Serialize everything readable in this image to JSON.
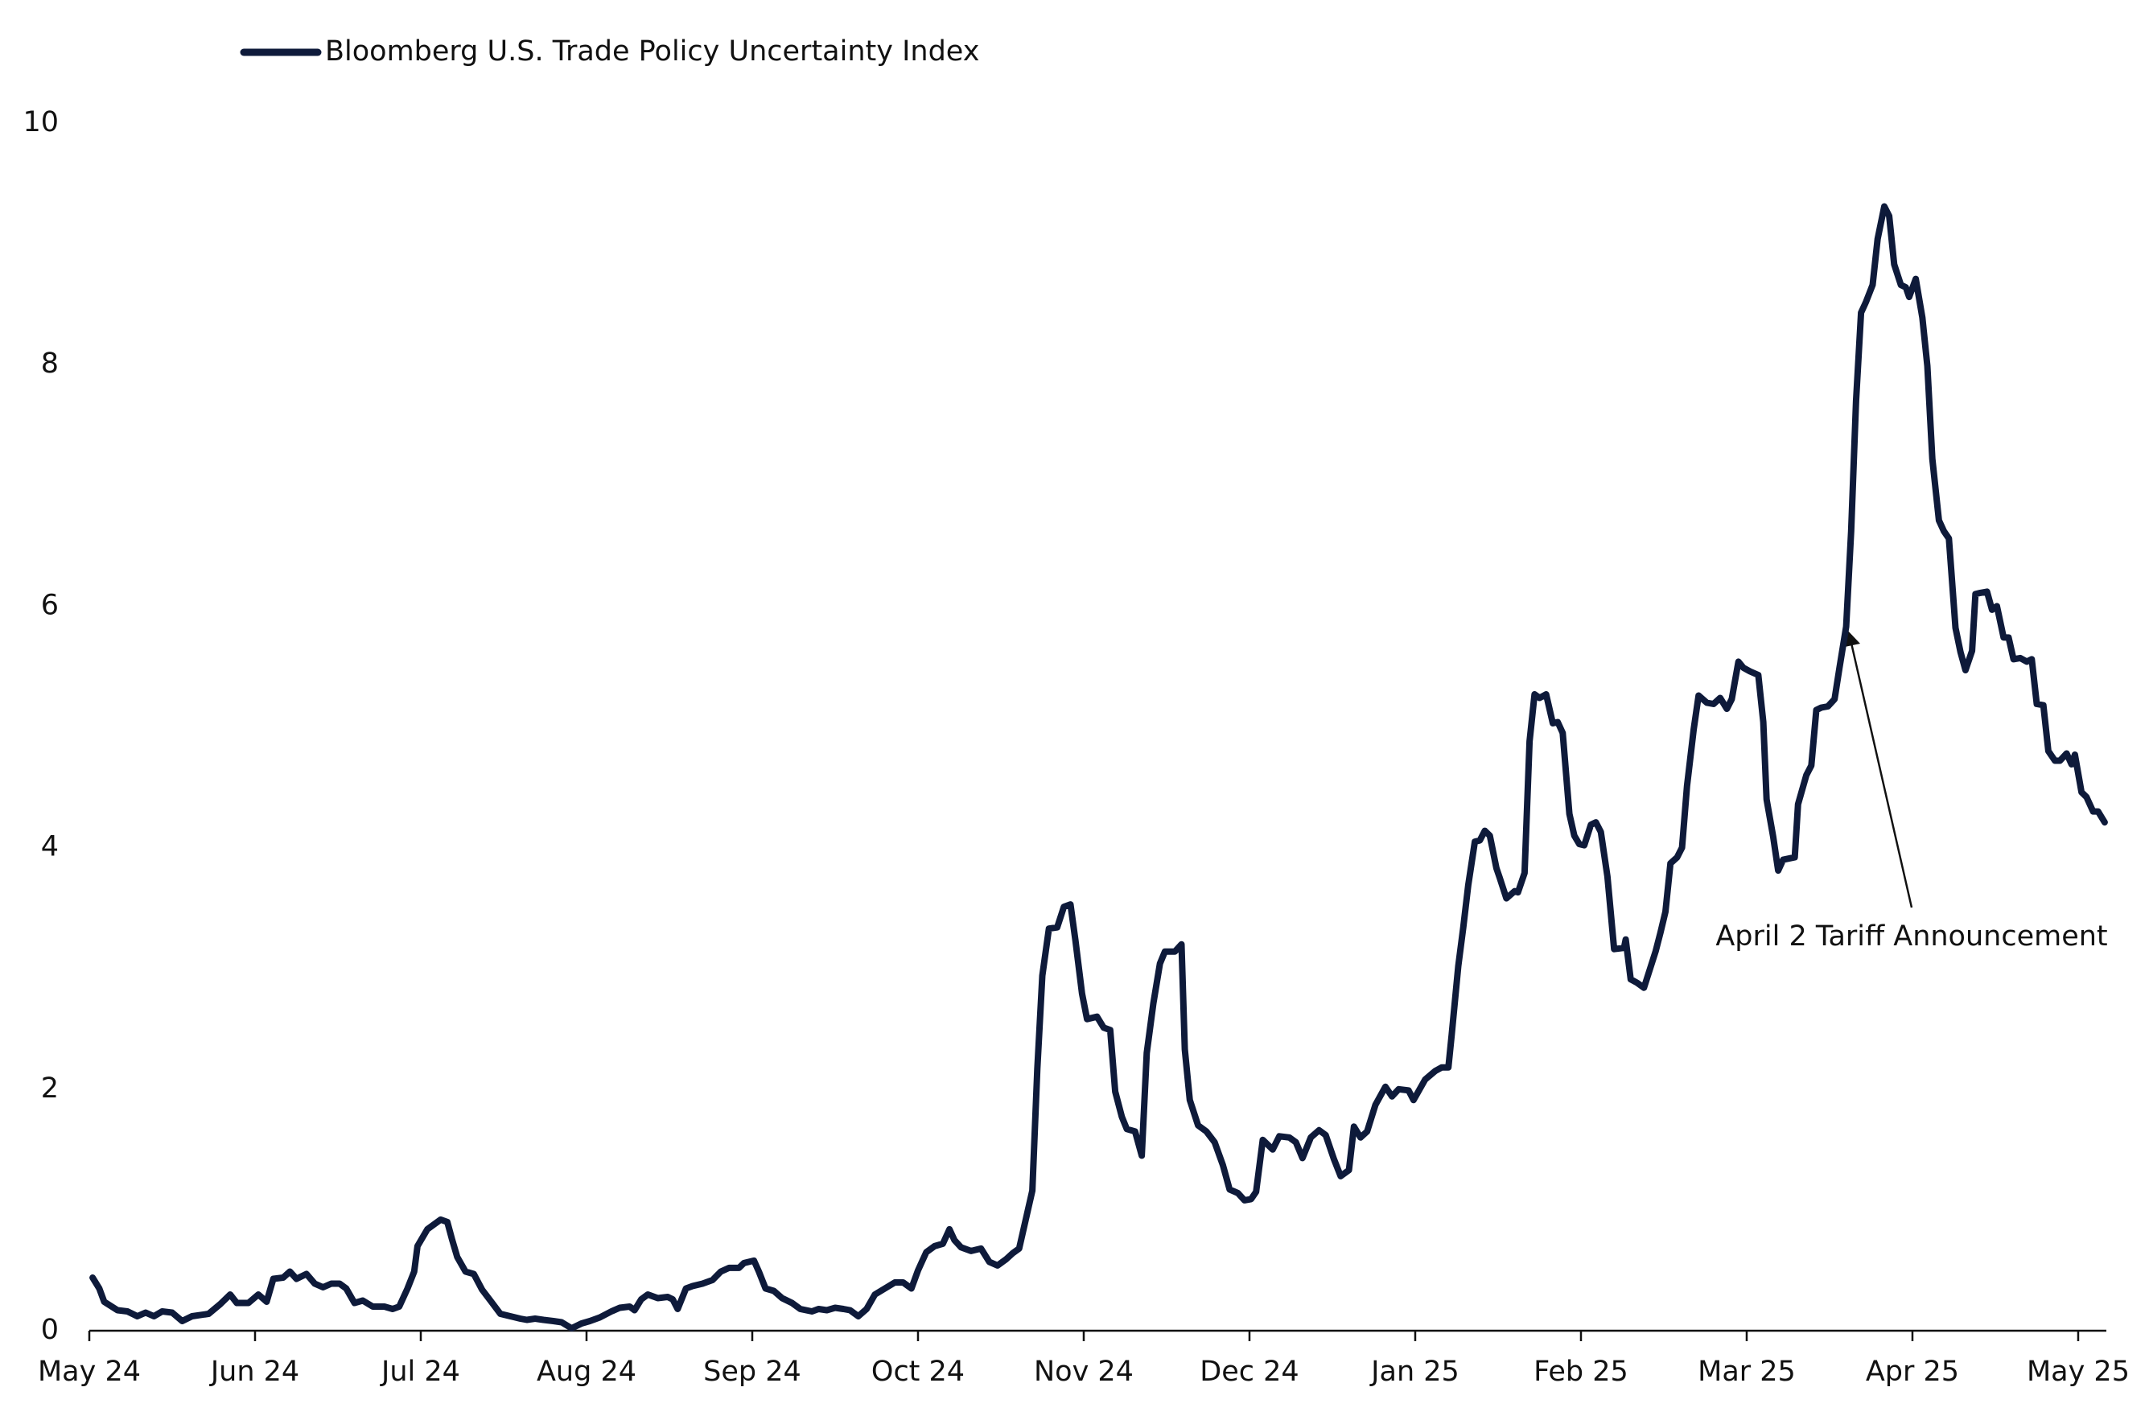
{
  "chart_data": {
    "type": "line",
    "legend": "top-left",
    "series": [
      {
        "name": "Bloomberg U.S. Trade Policy Uncertainty Index",
        "color": "#0e1a3a",
        "x": [
          0.02,
          0.06,
          0.09,
          0.17,
          0.23,
          0.29,
          0.34,
          0.39,
          0.44,
          0.5,
          0.56,
          0.62,
          0.72,
          0.79,
          0.85,
          0.89,
          0.96,
          1.02,
          1.07,
          1.11,
          1.17,
          1.21,
          1.25,
          1.31,
          1.36,
          1.41,
          1.46,
          1.51,
          1.55,
          1.6,
          1.65,
          1.71,
          1.78,
          1.83,
          1.87,
          1.92,
          1.96,
          1.98,
          2.04,
          2.09,
          2.12,
          2.16,
          2.19,
          2.22,
          2.27,
          2.32,
          2.37,
          2.42,
          2.48,
          2.54,
          2.6,
          2.64,
          2.69,
          2.74,
          2.8,
          2.85,
          2.91,
          2.97,
          3.02,
          3.08,
          3.15,
          3.2,
          3.26,
          3.29,
          3.33,
          3.37,
          3.43,
          3.49,
          3.52,
          3.55,
          3.6,
          3.64,
          3.7,
          3.76,
          3.81,
          3.86,
          3.92,
          3.95,
          4.01,
          4.04,
          4.08,
          4.13,
          4.18,
          4.24,
          4.29,
          4.36,
          4.4,
          4.45,
          4.5,
          4.55,
          4.59,
          4.64,
          4.69,
          4.74,
          4.8,
          4.86,
          4.91,
          4.96,
          5.0,
          5.05,
          5.1,
          5.15,
          5.19,
          5.22,
          5.26,
          5.32,
          5.38,
          5.43,
          5.48,
          5.53,
          5.57,
          5.61,
          5.65,
          5.69,
          5.72,
          5.75,
          5.79,
          5.84,
          5.88,
          5.92,
          5.95,
          5.99,
          6.02,
          6.08,
          6.12,
          6.16,
          6.19,
          6.23,
          6.26,
          6.31,
          6.35,
          6.38,
          6.42,
          6.46,
          6.49,
          6.55,
          6.59,
          6.61,
          6.64,
          6.69,
          6.74,
          6.79,
          6.84,
          6.88,
          6.93,
          6.97,
          7.01,
          7.04,
          7.08,
          7.14,
          7.18,
          7.24,
          7.28,
          7.32,
          7.37,
          7.42,
          7.46,
          7.51,
          7.55,
          7.6,
          7.63,
          7.67,
          7.71,
          7.76,
          7.82,
          7.86,
          7.9,
          7.96,
          7.99,
          8.06,
          8.12,
          8.16,
          8.2,
          8.22,
          8.26,
          8.29,
          8.32,
          8.36,
          8.39,
          8.42,
          8.45,
          8.49,
          8.51,
          8.55,
          8.6,
          8.62,
          8.66,
          8.69,
          8.72,
          8.75,
          8.79,
          8.83,
          8.86,
          8.89,
          8.93,
          8.96,
          8.99,
          9.02,
          9.06,
          9.09,
          9.12,
          9.16,
          9.2,
          9.26,
          9.27,
          9.3,
          9.34,
          9.38,
          9.45,
          9.48,
          9.51,
          9.54,
          9.58,
          9.61,
          9.64,
          9.68,
          9.71,
          9.76,
          9.8,
          9.84,
          9.88,
          9.91,
          9.95,
          9.98,
          10.02,
          10.07,
          10.1,
          10.12,
          10.16,
          10.19,
          10.22,
          10.29,
          10.31,
          10.36,
          10.39,
          10.42,
          10.45,
          10.49,
          10.53,
          10.56,
          10.6,
          10.63,
          10.66,
          10.69,
          10.72,
          10.76,
          10.79,
          10.83,
          10.86,
          10.89,
          10.93,
          10.96,
          10.98,
          11.02,
          11.06,
          11.09,
          11.12,
          11.16,
          11.19,
          11.22,
          11.26,
          11.29,
          11.32,
          11.36,
          11.38,
          11.41,
          11.45,
          11.48,
          11.51,
          11.55,
          11.58,
          11.61,
          11.65,
          11.69,
          11.72,
          11.75,
          11.79,
          11.82,
          11.86,
          11.89,
          11.93,
          11.96,
          11.98,
          12.02,
          12.05,
          12.09,
          12.12,
          12.16
        ],
        "values": [
          0.44,
          0.35,
          0.24,
          0.17,
          0.16,
          0.12,
          0.15,
          0.12,
          0.16,
          0.15,
          0.08,
          0.12,
          0.14,
          0.22,
          0.3,
          0.23,
          0.23,
          0.3,
          0.24,
          0.43,
          0.44,
          0.49,
          0.43,
          0.47,
          0.39,
          0.36,
          0.39,
          0.39,
          0.35,
          0.23,
          0.25,
          0.2,
          0.2,
          0.18,
          0.2,
          0.35,
          0.49,
          0.7,
          0.84,
          0.89,
          0.92,
          0.9,
          0.75,
          0.61,
          0.49,
          0.47,
          0.34,
          0.25,
          0.14,
          0.12,
          0.1,
          0.09,
          0.1,
          0.09,
          0.08,
          0.07,
          0.02,
          0.06,
          0.08,
          0.11,
          0.16,
          0.19,
          0.2,
          0.17,
          0.26,
          0.3,
          0.27,
          0.28,
          0.26,
          0.18,
          0.35,
          0.37,
          0.39,
          0.42,
          0.49,
          0.52,
          0.52,
          0.56,
          0.58,
          0.49,
          0.35,
          0.33,
          0.27,
          0.23,
          0.18,
          0.16,
          0.18,
          0.17,
          0.19,
          0.18,
          0.17,
          0.12,
          0.18,
          0.3,
          0.35,
          0.4,
          0.4,
          0.35,
          0.5,
          0.65,
          0.7,
          0.72,
          0.84,
          0.75,
          0.69,
          0.66,
          0.68,
          0.57,
          0.54,
          0.59,
          0.64,
          0.68,
          0.92,
          1.16,
          2.17,
          2.94,
          3.33,
          3.34,
          3.51,
          3.53,
          3.23,
          2.79,
          2.58,
          2.6,
          2.51,
          2.49,
          1.98,
          1.77,
          1.67,
          1.65,
          1.45,
          2.3,
          2.71,
          3.04,
          3.14,
          3.14,
          3.2,
          2.33,
          1.91,
          1.7,
          1.65,
          1.56,
          1.37,
          1.17,
          1.14,
          1.08,
          1.09,
          1.15,
          1.58,
          1.5,
          1.61,
          1.6,
          1.56,
          1.43,
          1.6,
          1.66,
          1.62,
          1.42,
          1.28,
          1.33,
          1.69,
          1.6,
          1.65,
          1.87,
          2.02,
          1.94,
          2.0,
          1.99,
          1.91,
          2.08,
          2.15,
          2.18,
          2.18,
          2.45,
          3.02,
          3.34,
          3.69,
          4.05,
          4.06,
          4.14,
          4.1,
          3.83,
          3.75,
          3.58,
          3.64,
          3.63,
          3.79,
          4.88,
          5.27,
          5.24,
          5.27,
          5.03,
          5.04,
          4.95,
          4.28,
          4.1,
          4.03,
          4.02,
          4.19,
          4.21,
          4.13,
          3.76,
          3.16,
          3.17,
          3.24,
          2.91,
          2.88,
          2.84,
          3.14,
          3.3,
          3.47,
          3.87,
          3.92,
          4.0,
          4.51,
          4.98,
          5.26,
          5.2,
          5.19,
          5.24,
          5.15,
          5.23,
          5.54,
          5.49,
          5.46,
          5.43,
          5.04,
          4.4,
          4.09,
          3.81,
          3.9,
          3.92,
          4.36,
          4.6,
          4.68,
          5.14,
          5.16,
          5.17,
          5.23,
          5.49,
          5.83,
          6.62,
          7.7,
          8.43,
          8.52,
          8.66,
          9.04,
          9.31,
          9.23,
          8.83,
          8.66,
          8.64,
          8.56,
          8.71,
          8.39,
          7.99,
          7.22,
          6.71,
          6.62,
          6.56,
          5.82,
          5.62,
          5.47,
          5.63,
          6.1,
          6.11,
          6.12,
          5.97,
          6.0,
          5.74,
          5.74,
          5.56,
          5.57,
          5.54,
          5.56,
          5.19,
          5.18,
          4.8,
          4.72,
          4.72,
          4.78,
          4.69,
          4.77,
          4.46,
          4.42,
          4.3,
          4.3,
          4.21
        ]
      }
    ],
    "xlim": [
      0,
      12.17
    ],
    "xticks": [
      {
        "value": 0,
        "label": "May 24"
      },
      {
        "value": 1,
        "label": "Jun 24"
      },
      {
        "value": 2,
        "label": "Jul 24"
      },
      {
        "value": 3,
        "label": "Aug 24"
      },
      {
        "value": 4,
        "label": "Sep 24"
      },
      {
        "value": 5,
        "label": "Oct 24"
      },
      {
        "value": 6,
        "label": "Nov 24"
      },
      {
        "value": 7,
        "label": "Dec 24"
      },
      {
        "value": 8,
        "label": "Jan 25"
      },
      {
        "value": 9,
        "label": "Feb 25"
      },
      {
        "value": 10,
        "label": "Mar 25"
      },
      {
        "value": 11,
        "label": "Apr 25"
      },
      {
        "value": 12,
        "label": "May 25"
      }
    ],
    "ylim": [
      0,
      10
    ],
    "yticks": [
      0,
      2,
      4,
      6,
      8,
      10
    ],
    "grid": false,
    "annotations": [
      {
        "text": "April 2 Tariff Announcement"
      }
    ]
  }
}
